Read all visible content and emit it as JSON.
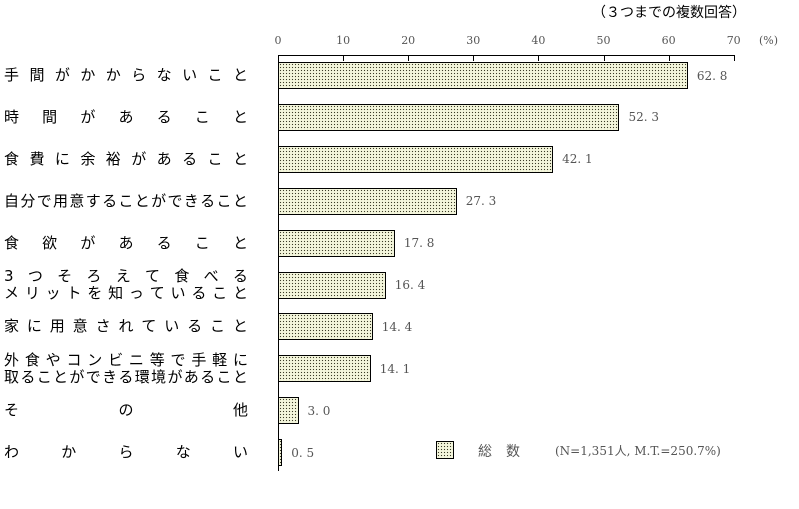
{
  "header": {
    "note": "（３つまでの複数回答）"
  },
  "axis": {
    "ticks": [
      "0",
      "10",
      "20",
      "30",
      "40",
      "50",
      "60",
      "70"
    ],
    "unit": "(%)"
  },
  "legend": {
    "name": "総数",
    "sample": "(N=1,351人, M.T.=250.7%)"
  },
  "rows": [
    {
      "lines": [
        [
          "手",
          "間",
          "が",
          "か",
          "か",
          "ら",
          "な",
          "い",
          "こ",
          "と"
        ]
      ],
      "value": "62.8"
    },
    {
      "lines": [
        [
          "時",
          "間",
          "が",
          "あ",
          "る",
          "こ",
          "と"
        ]
      ],
      "value": "52.3"
    },
    {
      "lines": [
        [
          "食",
          "費",
          "に",
          "余",
          "裕",
          "が",
          "あ",
          "る",
          "こ",
          "と"
        ]
      ],
      "value": "42.1"
    },
    {
      "lines": [
        [
          "自",
          "分",
          "で",
          "用",
          "意",
          "す",
          "る",
          "こ",
          "と",
          "が",
          "で",
          "き",
          "る",
          "こ",
          "と"
        ]
      ],
      "value": "27.3"
    },
    {
      "lines": [
        [
          "食",
          "欲",
          "が",
          "あ",
          "る",
          "こ",
          "と"
        ]
      ],
      "value": "17.8"
    },
    {
      "lines": [
        [
          "3",
          "つ",
          "そ",
          "ろ",
          "え",
          "て",
          "食",
          "べ",
          "る"
        ],
        [
          "メ",
          "リ",
          "ッ",
          "ト",
          "を",
          "知",
          "っ",
          "て",
          "い",
          "る",
          "こ",
          "と"
        ]
      ],
      "value": "16.4"
    },
    {
      "lines": [
        [
          "家",
          "に",
          "用",
          "意",
          "さ",
          "れ",
          "て",
          "い",
          "る",
          "こ",
          "と"
        ]
      ],
      "value": "14.4"
    },
    {
      "lines": [
        [
          "外",
          "食",
          "や",
          "コ",
          "ン",
          "ビ",
          "ニ",
          "等",
          "で",
          "手",
          "軽",
          "に"
        ],
        [
          "取",
          "る",
          "こ",
          "と",
          "が",
          "で",
          "き",
          "る",
          "環",
          "境",
          "が",
          "あ",
          "る",
          "こ",
          "と"
        ]
      ],
      "value": "14.1"
    },
    {
      "lines": [
        [
          "そ",
          "の",
          "他"
        ]
      ],
      "value": "3.0"
    },
    {
      "lines": [
        [
          "わ",
          "か",
          "ら",
          "な",
          "い"
        ]
      ],
      "value": "0.5"
    }
  ],
  "chart_data": {
    "type": "bar",
    "orientation": "horizontal",
    "title": "",
    "subtitle": "（３つまでの複数回答）",
    "categories": [
      "手間がかからないこと",
      "時間があること",
      "食費に余裕があること",
      "自分で用意することができること",
      "食欲があること",
      "3つそろえて食べるメリットを知っていること",
      "家に用意されていること",
      "外食やコンビニ等で手軽に取ることができる環境があること",
      "その他",
      "わからない"
    ],
    "series": [
      {
        "name": "総数 (N=1,351人, M.T.=250.7%)",
        "values": [
          62.8,
          52.3,
          42.1,
          27.3,
          17.8,
          16.4,
          14.4,
          14.1,
          3.0,
          0.5
        ]
      }
    ],
    "xlabel": "(%)",
    "ylabel": "",
    "xlim": [
      0,
      70
    ],
    "xticks": [
      0,
      10,
      20,
      30,
      40,
      50,
      60,
      70
    ],
    "grid": false,
    "legend_position": "bottom-right",
    "data_labels": true
  }
}
